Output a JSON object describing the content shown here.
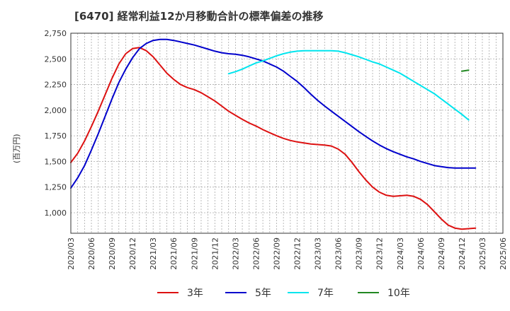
{
  "chart_data": {
    "type": "line",
    "title": "[6470]  経常利益12か月移動合計の標準偏差の推移",
    "ylabel": "(百万円)",
    "xlabel": "",
    "ylim": [
      800,
      2750
    ],
    "yticks": [
      1000,
      1250,
      1500,
      1750,
      2000,
      2250,
      2500,
      2750
    ],
    "ytick_labels": [
      "1,000",
      "1,250",
      "1,500",
      "1,750",
      "2,000",
      "2,250",
      "2,500",
      "2,750"
    ],
    "xticks": [
      "2020/03",
      "2020/06",
      "2020/09",
      "2020/12",
      "2021/03",
      "2021/06",
      "2021/09",
      "2021/12",
      "2022/03",
      "2022/06",
      "2022/09",
      "2022/12",
      "2023/03",
      "2023/06",
      "2023/09",
      "2023/12",
      "2024/03",
      "2024/06",
      "2024/09",
      "2024/12",
      "2025/03",
      "2025/06"
    ],
    "grid": true,
    "legend": "bottom",
    "series": [
      {
        "name": "3年",
        "color": "#dd1111",
        "points": [
          [
            "2020/03",
            1490
          ],
          [
            "2020/04",
            1580
          ],
          [
            "2020/05",
            1700
          ],
          [
            "2020/06",
            1840
          ],
          [
            "2020/07",
            1990
          ],
          [
            "2020/08",
            2150
          ],
          [
            "2020/09",
            2310
          ],
          [
            "2020/10",
            2450
          ],
          [
            "2020/11",
            2550
          ],
          [
            "2020/12",
            2600
          ],
          [
            "2021/01",
            2610
          ],
          [
            "2021/02",
            2580
          ],
          [
            "2021/03",
            2520
          ],
          [
            "2021/04",
            2440
          ],
          [
            "2021/05",
            2360
          ],
          [
            "2021/06",
            2300
          ],
          [
            "2021/07",
            2250
          ],
          [
            "2021/08",
            2220
          ],
          [
            "2021/09",
            2200
          ],
          [
            "2021/10",
            2170
          ],
          [
            "2021/11",
            2130
          ],
          [
            "2021/12",
            2090
          ],
          [
            "2022/01",
            2040
          ],
          [
            "2022/02",
            1990
          ],
          [
            "2022/03",
            1950
          ],
          [
            "2022/04",
            1910
          ],
          [
            "2022/05",
            1875
          ],
          [
            "2022/06",
            1845
          ],
          [
            "2022/07",
            1810
          ],
          [
            "2022/08",
            1780
          ],
          [
            "2022/09",
            1750
          ],
          [
            "2022/10",
            1725
          ],
          [
            "2022/11",
            1705
          ],
          [
            "2022/12",
            1690
          ],
          [
            "2023/01",
            1680
          ],
          [
            "2023/02",
            1670
          ],
          [
            "2023/03",
            1665
          ],
          [
            "2023/04",
            1660
          ],
          [
            "2023/05",
            1650
          ],
          [
            "2023/06",
            1620
          ],
          [
            "2023/07",
            1570
          ],
          [
            "2023/08",
            1490
          ],
          [
            "2023/09",
            1400
          ],
          [
            "2023/10",
            1320
          ],
          [
            "2023/11",
            1250
          ],
          [
            "2023/12",
            1200
          ],
          [
            "2024/01",
            1170
          ],
          [
            "2024/02",
            1160
          ],
          [
            "2024/03",
            1165
          ],
          [
            "2024/04",
            1170
          ],
          [
            "2024/05",
            1160
          ],
          [
            "2024/06",
            1130
          ],
          [
            "2024/07",
            1080
          ],
          [
            "2024/08",
            1010
          ],
          [
            "2024/09",
            940
          ],
          [
            "2024/10",
            880
          ],
          [
            "2024/11",
            850
          ],
          [
            "2024/12",
            840
          ],
          [
            "2025/01",
            845
          ],
          [
            "2025/02",
            850
          ]
        ]
      },
      {
        "name": "5年",
        "color": "#0000cc",
        "points": [
          [
            "2020/03",
            1240
          ],
          [
            "2020/04",
            1340
          ],
          [
            "2020/05",
            1460
          ],
          [
            "2020/06",
            1610
          ],
          [
            "2020/07",
            1770
          ],
          [
            "2020/08",
            1940
          ],
          [
            "2020/09",
            2110
          ],
          [
            "2020/10",
            2270
          ],
          [
            "2020/11",
            2400
          ],
          [
            "2020/12",
            2510
          ],
          [
            "2021/01",
            2600
          ],
          [
            "2021/02",
            2650
          ],
          [
            "2021/03",
            2680
          ],
          [
            "2021/04",
            2690
          ],
          [
            "2021/05",
            2690
          ],
          [
            "2021/06",
            2680
          ],
          [
            "2021/07",
            2665
          ],
          [
            "2021/08",
            2650
          ],
          [
            "2021/09",
            2635
          ],
          [
            "2021/10",
            2615
          ],
          [
            "2021/11",
            2595
          ],
          [
            "2021/12",
            2575
          ],
          [
            "2022/01",
            2560
          ],
          [
            "2022/02",
            2550
          ],
          [
            "2022/03",
            2545
          ],
          [
            "2022/04",
            2535
          ],
          [
            "2022/05",
            2520
          ],
          [
            "2022/06",
            2500
          ],
          [
            "2022/07",
            2480
          ],
          [
            "2022/08",
            2450
          ],
          [
            "2022/09",
            2420
          ],
          [
            "2022/10",
            2380
          ],
          [
            "2022/11",
            2330
          ],
          [
            "2022/12",
            2280
          ],
          [
            "2023/01",
            2220
          ],
          [
            "2023/02",
            2155
          ],
          [
            "2023/03",
            2095
          ],
          [
            "2023/04",
            2040
          ],
          [
            "2023/05",
            1990
          ],
          [
            "2023/06",
            1940
          ],
          [
            "2023/07",
            1890
          ],
          [
            "2023/08",
            1840
          ],
          [
            "2023/09",
            1790
          ],
          [
            "2023/10",
            1745
          ],
          [
            "2023/11",
            1700
          ],
          [
            "2023/12",
            1660
          ],
          [
            "2024/01",
            1625
          ],
          [
            "2024/02",
            1595
          ],
          [
            "2024/03",
            1570
          ],
          [
            "2024/04",
            1545
          ],
          [
            "2024/05",
            1525
          ],
          [
            "2024/06",
            1500
          ],
          [
            "2024/07",
            1480
          ],
          [
            "2024/08",
            1460
          ],
          [
            "2024/09",
            1450
          ],
          [
            "2024/10",
            1440
          ],
          [
            "2024/11",
            1435
          ],
          [
            "2024/12",
            1435
          ],
          [
            "2025/01",
            1435
          ],
          [
            "2025/02",
            1435
          ]
        ]
      },
      {
        "name": "7年",
        "color": "#00e5ee",
        "points": [
          [
            "2022/02",
            2355
          ],
          [
            "2022/03",
            2375
          ],
          [
            "2022/04",
            2400
          ],
          [
            "2022/05",
            2430
          ],
          [
            "2022/06",
            2460
          ],
          [
            "2022/07",
            2480
          ],
          [
            "2022/08",
            2505
          ],
          [
            "2022/09",
            2530
          ],
          [
            "2022/10",
            2550
          ],
          [
            "2022/11",
            2565
          ],
          [
            "2022/12",
            2575
          ],
          [
            "2023/01",
            2580
          ],
          [
            "2023/02",
            2580
          ],
          [
            "2023/03",
            2580
          ],
          [
            "2023/04",
            2580
          ],
          [
            "2023/05",
            2580
          ],
          [
            "2023/06",
            2575
          ],
          [
            "2023/07",
            2560
          ],
          [
            "2023/08",
            2540
          ],
          [
            "2023/09",
            2520
          ],
          [
            "2023/10",
            2495
          ],
          [
            "2023/11",
            2470
          ],
          [
            "2023/12",
            2450
          ],
          [
            "2024/01",
            2420
          ],
          [
            "2024/02",
            2390
          ],
          [
            "2024/03",
            2360
          ],
          [
            "2024/04",
            2320
          ],
          [
            "2024/05",
            2280
          ],
          [
            "2024/06",
            2240
          ],
          [
            "2024/07",
            2200
          ],
          [
            "2024/08",
            2160
          ],
          [
            "2024/09",
            2110
          ],
          [
            "2024/10",
            2060
          ],
          [
            "2024/11",
            2010
          ],
          [
            "2024/12",
            1960
          ],
          [
            "2025/01",
            1905
          ]
        ]
      },
      {
        "name": "10年",
        "color": "#228822",
        "points": [
          [
            "2024/12",
            2380
          ],
          [
            "2025/01",
            2390
          ]
        ]
      }
    ]
  }
}
